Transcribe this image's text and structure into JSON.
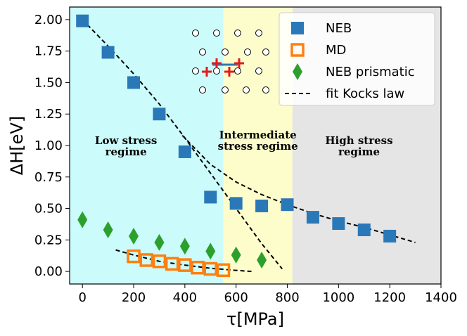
{
  "chart_data": {
    "type": "scatter",
    "xlabel": "τ[MPa]",
    "ylabel": "ΔH[eV]",
    "xlim": [
      -50,
      1400
    ],
    "ylim": [
      -0.1,
      2.1
    ],
    "xticks": [
      0,
      200,
      400,
      600,
      800,
      1000,
      1200,
      1400
    ],
    "yticks": [
      0.0,
      0.25,
      0.5,
      0.75,
      1.0,
      1.25,
      1.5,
      1.75,
      2.0
    ],
    "xtick_labels": [
      "0",
      "200",
      "400",
      "600",
      "800",
      "1000",
      "1200",
      "1400"
    ],
    "ytick_labels": [
      "0.00",
      "0.25",
      "0.50",
      "0.75",
      "1.00",
      "1.25",
      "1.50",
      "1.75",
      "2.00"
    ],
    "regions": [
      {
        "name": "low",
        "label_lines": [
          "Low stress",
          "regime"
        ],
        "x_range": [
          -50,
          550
        ],
        "color": "#ccfbfb"
      },
      {
        "name": "intermediate",
        "label_lines": [
          "Intermediate",
          "stress regime"
        ],
        "x_range": [
          550,
          820
        ],
        "color": "#fdfdcc"
      },
      {
        "name": "high",
        "label_lines": [
          "High stress",
          "regime"
        ],
        "x_range": [
          820,
          1400
        ],
        "color": "#e5e5e5"
      }
    ],
    "series": [
      {
        "name": "NEB",
        "marker": "square",
        "color": "#2a78b8",
        "x": [
          0,
          100,
          200,
          300,
          400,
          500,
          600,
          700,
          800,
          900,
          1000,
          1100,
          1200
        ],
        "y": [
          1.99,
          1.74,
          1.5,
          1.25,
          0.95,
          0.59,
          0.54,
          0.52,
          0.53,
          0.43,
          0.38,
          0.33,
          0.28
        ]
      },
      {
        "name": "MD",
        "marker": "open-square",
        "color": "#ff7f0e",
        "x": [
          200,
          250,
          300,
          350,
          400,
          450,
          500,
          550
        ],
        "y": [
          0.12,
          0.09,
          0.08,
          0.06,
          0.05,
          0.03,
          0.02,
          0.01
        ]
      },
      {
        "name": "NEB prismatic",
        "marker": "diamond",
        "color": "#2ca02c",
        "x": [
          0,
          100,
          200,
          300,
          400,
          500,
          600,
          700
        ],
        "y": [
          0.41,
          0.33,
          0.28,
          0.23,
          0.2,
          0.16,
          0.13,
          0.09
        ]
      },
      {
        "name": "fit Kocks law",
        "marker": "dashed-line",
        "color": "#000000",
        "fits": [
          {
            "x": [
              0,
              100,
              200,
              300,
              400,
              500,
              600,
              700,
              780
            ],
            "y": [
              2.0,
              1.79,
              1.57,
              1.33,
              1.06,
              0.78,
              0.5,
              0.22,
              0.02
            ]
          },
          {
            "x": [
              390,
              500,
              600,
              700,
              800,
              900,
              1000,
              1100,
              1200,
              1300
            ],
            "y": [
              1.08,
              0.85,
              0.71,
              0.61,
              0.53,
              0.46,
              0.4,
              0.35,
              0.29,
              0.23
            ]
          },
          {
            "x": [
              130,
              200,
              300,
              400,
              500,
              600,
              660
            ],
            "y": [
              0.17,
              0.13,
              0.08,
              0.05,
              0.025,
              0.008,
              0.0
            ]
          }
        ]
      }
    ],
    "legend": {
      "position": "top-right",
      "entries": [
        "NEB",
        "MD",
        "NEB prismatic",
        "fit Kocks law"
      ]
    },
    "inset": {
      "description": "atomic lattice sketch with red crosses",
      "position": "top-center"
    }
  }
}
